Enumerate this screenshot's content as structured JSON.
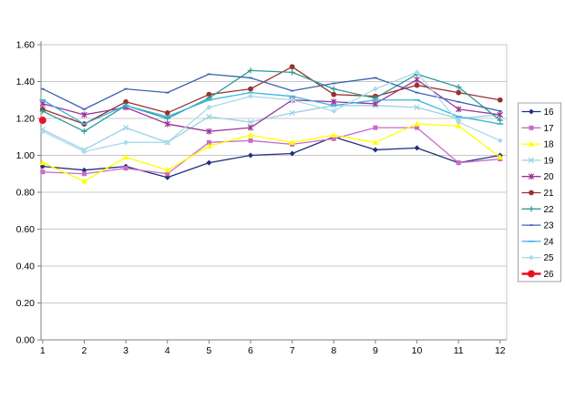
{
  "page": {
    "background": "#FFFFFF"
  },
  "chart_data": {
    "type": "line",
    "title": "",
    "xlabel": "",
    "ylabel": "",
    "grid": true,
    "legend_position": "right",
    "x_categories": [
      "1",
      "2",
      "3",
      "4",
      "5",
      "6",
      "7",
      "8",
      "9",
      "10",
      "11",
      "12"
    ],
    "y_axis": {
      "min": 0.0,
      "max": 1.6,
      "step": 0.2,
      "tick_labels": [
        "0.00",
        "0.20",
        "0.40",
        "0.60",
        "0.80",
        "1.00",
        "1.20",
        "1.40",
        "1.60"
      ]
    },
    "series": [
      {
        "name": "16",
        "color": "#23307E",
        "marker": "diamond",
        "line_width": 1.3,
        "values": [
          0.94,
          0.92,
          0.94,
          0.88,
          0.96,
          1.0,
          1.01,
          1.1,
          1.03,
          1.04,
          0.96,
          1.0
        ]
      },
      {
        "name": "17",
        "color": "#C96BC4",
        "marker": "square",
        "line_width": 1.3,
        "values": [
          0.91,
          0.9,
          0.93,
          0.9,
          1.07,
          1.08,
          1.06,
          1.09,
          1.15,
          1.15,
          0.96,
          0.98
        ]
      },
      {
        "name": "18",
        "color": "#FFFF00",
        "marker": "triangle",
        "line_width": 1.3,
        "values": [
          0.96,
          0.86,
          0.99,
          0.92,
          1.05,
          1.11,
          1.07,
          1.11,
          1.07,
          1.17,
          1.16,
          0.99
        ]
      },
      {
        "name": "19",
        "color": "#9CD1E4",
        "marker": "x",
        "line_width": 1.3,
        "values": [
          1.14,
          1.03,
          1.15,
          1.07,
          1.21,
          1.18,
          1.23,
          1.27,
          1.27,
          1.26,
          1.2,
          1.22
        ]
      },
      {
        "name": "20",
        "color": "#9A3597",
        "marker": "star",
        "line_width": 1.3,
        "values": [
          1.28,
          1.22,
          1.26,
          1.17,
          1.13,
          1.15,
          1.3,
          1.29,
          1.28,
          1.41,
          1.25,
          1.22
        ]
      },
      {
        "name": "21",
        "color": "#97332F",
        "marker": "circle",
        "line_width": 1.3,
        "values": [
          1.25,
          1.17,
          1.29,
          1.23,
          1.33,
          1.36,
          1.48,
          1.33,
          1.32,
          1.38,
          1.34,
          1.3
        ]
      },
      {
        "name": "22",
        "color": "#2F9A96",
        "marker": "plus",
        "line_width": 1.3,
        "values": [
          1.24,
          1.13,
          1.27,
          1.2,
          1.31,
          1.46,
          1.45,
          1.36,
          1.31,
          1.44,
          1.37,
          1.19
        ]
      },
      {
        "name": "23",
        "color": "#3C63B0",
        "marker": "dot",
        "line_width": 1.3,
        "values": [
          1.36,
          1.25,
          1.36,
          1.34,
          1.44,
          1.42,
          1.35,
          1.39,
          1.42,
          1.34,
          1.29,
          1.24
        ]
      },
      {
        "name": "24",
        "color": "#38B6E2",
        "marker": "dash",
        "line_width": 1.3,
        "values": [
          1.3,
          1.17,
          1.27,
          1.21,
          1.3,
          1.34,
          1.32,
          1.27,
          1.3,
          1.3,
          1.21,
          1.17
        ]
      },
      {
        "name": "25",
        "color": "#A9DBEA",
        "marker": "diamond",
        "line_width": 1.3,
        "values": [
          1.13,
          1.02,
          1.07,
          1.07,
          1.26,
          1.32,
          1.3,
          1.24,
          1.36,
          1.45,
          1.18,
          1.08
        ]
      },
      {
        "name": "26",
        "color": "#E81123",
        "marker": "circle-big",
        "line_width": 2.6,
        "values": [
          1.19,
          null,
          null,
          null,
          null,
          null,
          null,
          null,
          null,
          null,
          null,
          null
        ]
      }
    ]
  },
  "colors": {
    "gridline": "#C8C8C8",
    "plot_border": "#C8C8C8",
    "axis": "#808080",
    "legend_border": "#A3A3A3",
    "tick_text": "#000000"
  }
}
